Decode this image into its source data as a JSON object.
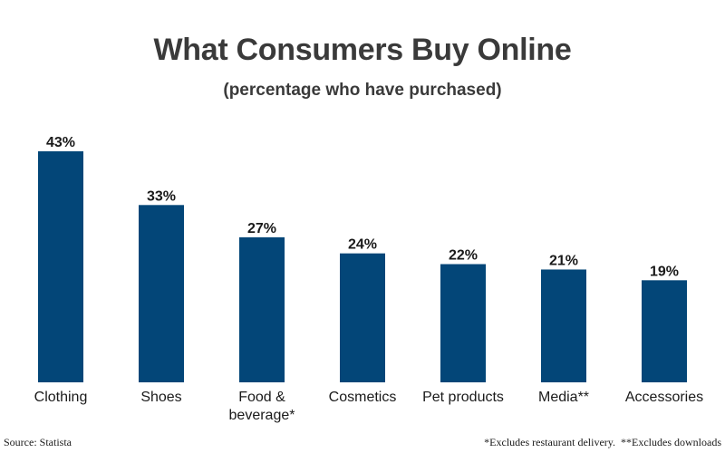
{
  "colors": {
    "bar": "#034678",
    "title": "#3a3a3a",
    "text": "#1a1a1a"
  },
  "chart_data": {
    "type": "bar",
    "title": "What Consumers Buy Online",
    "subtitle": "(percentage who have purchased)",
    "xlabel": "",
    "ylabel": "",
    "ylim": [
      0,
      43
    ],
    "grid": false,
    "legend": "none",
    "categories": [
      [
        "Clothing"
      ],
      [
        "Shoes"
      ],
      [
        "Food &",
        "beverage*"
      ],
      [
        "Cosmetics"
      ],
      [
        "Pet products"
      ],
      [
        "Media**"
      ],
      [
        "Accessories"
      ]
    ],
    "values": [
      43,
      33,
      27,
      24,
      22,
      21,
      19
    ],
    "value_labels": [
      "43%",
      "33%",
      "27%",
      "24%",
      "22%",
      "21%",
      "19%"
    ]
  },
  "footer": {
    "source": "Source: Statista",
    "notes": "*Excludes restaurant delivery.  **Excludes downloads"
  }
}
